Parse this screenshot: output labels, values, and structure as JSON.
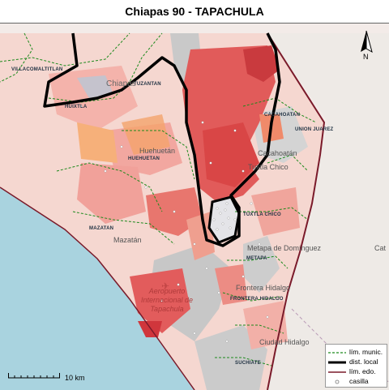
{
  "title": "Chiapas 90 - TAPACHULA",
  "north_label": "N",
  "scale_label": "10 km",
  "legend": [
    {
      "label": "lím. munic.",
      "style": "dashed-green"
    },
    {
      "label": "dist. local",
      "style": "thick-black"
    },
    {
      "label": "lím. edo.",
      "style": "dark-red"
    },
    {
      "label": "casilla",
      "style": "white-dot"
    }
  ],
  "municipality_labels": {
    "villacomaltitlan": "VILLACOMALTITLAN",
    "tuzantan": "TUZANTAN",
    "huixtla": "HUIXTLA",
    "huehuetan": "HUEHUETAN",
    "cacahoatan": "CACAHOATAN",
    "union_juarez": "UNION JUAREZ",
    "tuxtla_chico": "TUXTLA CHICO",
    "mazatan": "MAZATAN",
    "metapa": "METAPA",
    "frontera_hidalgo": "FRONTERA HIDALGO",
    "suchiate": "SUCHIATE"
  },
  "place_labels": {
    "chiapas": "Chiapas",
    "huehuetan": "Huehuetán",
    "cacahoatan": "Cacahoatán",
    "tuxtla_chico": "Tuxtla Chico",
    "mazatan": "Mazatán",
    "metapa": "Metapa de Domínguez",
    "frontera_hidalgo": "Frontera Hidalgo",
    "ciudad_hidalgo": "Ciudad Hidalgo",
    "guatemala_partial": "Cat",
    "airport": "Aeropuerto Internacional de Tapachula"
  },
  "colors": {
    "land": "#f2e6e3",
    "sea": "#a9d3df",
    "gray": "#cfcfcf",
    "red_strong": "#e3585a",
    "red_mid": "#ef8e86",
    "red_light": "#f6c2b9",
    "orange": "#f5a778",
    "muni_line": "#1c8a1c",
    "district_line": "#000000",
    "state_line": "#7a1a2a"
  }
}
